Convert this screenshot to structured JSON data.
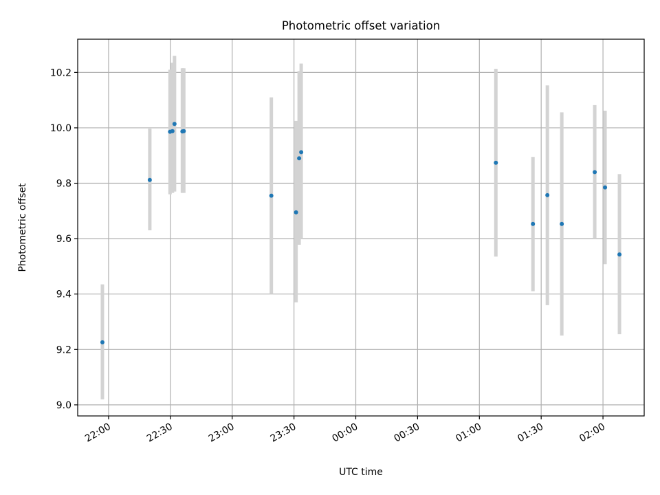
{
  "chart_data": {
    "type": "scatter",
    "title": "Photometric offset variation",
    "xlabel": "UTC time",
    "ylabel": "Photometric offset",
    "grid": true,
    "xlim": [
      "21:45",
      "02:20"
    ],
    "ylim": [
      8.96,
      10.32
    ],
    "xticks": [
      "22:00",
      "22:30",
      "23:00",
      "23:30",
      "00:00",
      "00:30",
      "01:00",
      "01:30",
      "02:00"
    ],
    "yticks": [
      "9.0",
      "9.2",
      "9.4",
      "9.6",
      "9.8",
      "10.0",
      "10.2"
    ],
    "point_color": "#1f77b4",
    "errorbar_color": "#d3d3d3",
    "points": [
      {
        "x": "21:57",
        "y": 9.226,
        "ylow": 9.02,
        "yhigh": 9.435
      },
      {
        "x": "22:20",
        "y": 9.812,
        "ylow": 9.63,
        "yhigh": 9.997
      },
      {
        "x": "22:29:50",
        "y": 9.986,
        "ylow": 9.76,
        "yhigh": 10.21
      },
      {
        "x": "22:31",
        "y": 9.988,
        "ylow": 9.765,
        "yhigh": 10.235
      },
      {
        "x": "22:32",
        "y": 10.014,
        "ylow": 9.77,
        "yhigh": 10.26
      },
      {
        "x": "22:35:50",
        "y": 9.987,
        "ylow": 9.765,
        "yhigh": 10.215
      },
      {
        "x": "22:36:30",
        "y": 9.988,
        "ylow": 9.765,
        "yhigh": 10.215
      },
      {
        "x": "23:19",
        "y": 9.755,
        "ylow": 9.4,
        "yhigh": 10.11
      },
      {
        "x": "23:31",
        "y": 9.695,
        "ylow": 9.37,
        "yhigh": 10.025
      },
      {
        "x": "23:32:30",
        "y": 9.89,
        "ylow": 9.578,
        "yhigh": 10.205
      },
      {
        "x": "23:33:30",
        "y": 9.912,
        "ylow": 9.6,
        "yhigh": 10.232
      },
      {
        "x": "01:08",
        "y": 9.874,
        "ylow": 9.535,
        "yhigh": 10.213
      },
      {
        "x": "01:26",
        "y": 9.653,
        "ylow": 9.41,
        "yhigh": 9.895
      },
      {
        "x": "01:33",
        "y": 9.757,
        "ylow": 9.36,
        "yhigh": 10.153
      },
      {
        "x": "01:40",
        "y": 9.653,
        "ylow": 9.25,
        "yhigh": 10.056
      },
      {
        "x": "01:56",
        "y": 9.84,
        "ylow": 9.6,
        "yhigh": 10.082
      },
      {
        "x": "02:01",
        "y": 9.785,
        "ylow": 9.508,
        "yhigh": 10.062
      },
      {
        "x": "02:08",
        "y": 9.543,
        "ylow": 9.255,
        "yhigh": 9.833
      }
    ]
  }
}
